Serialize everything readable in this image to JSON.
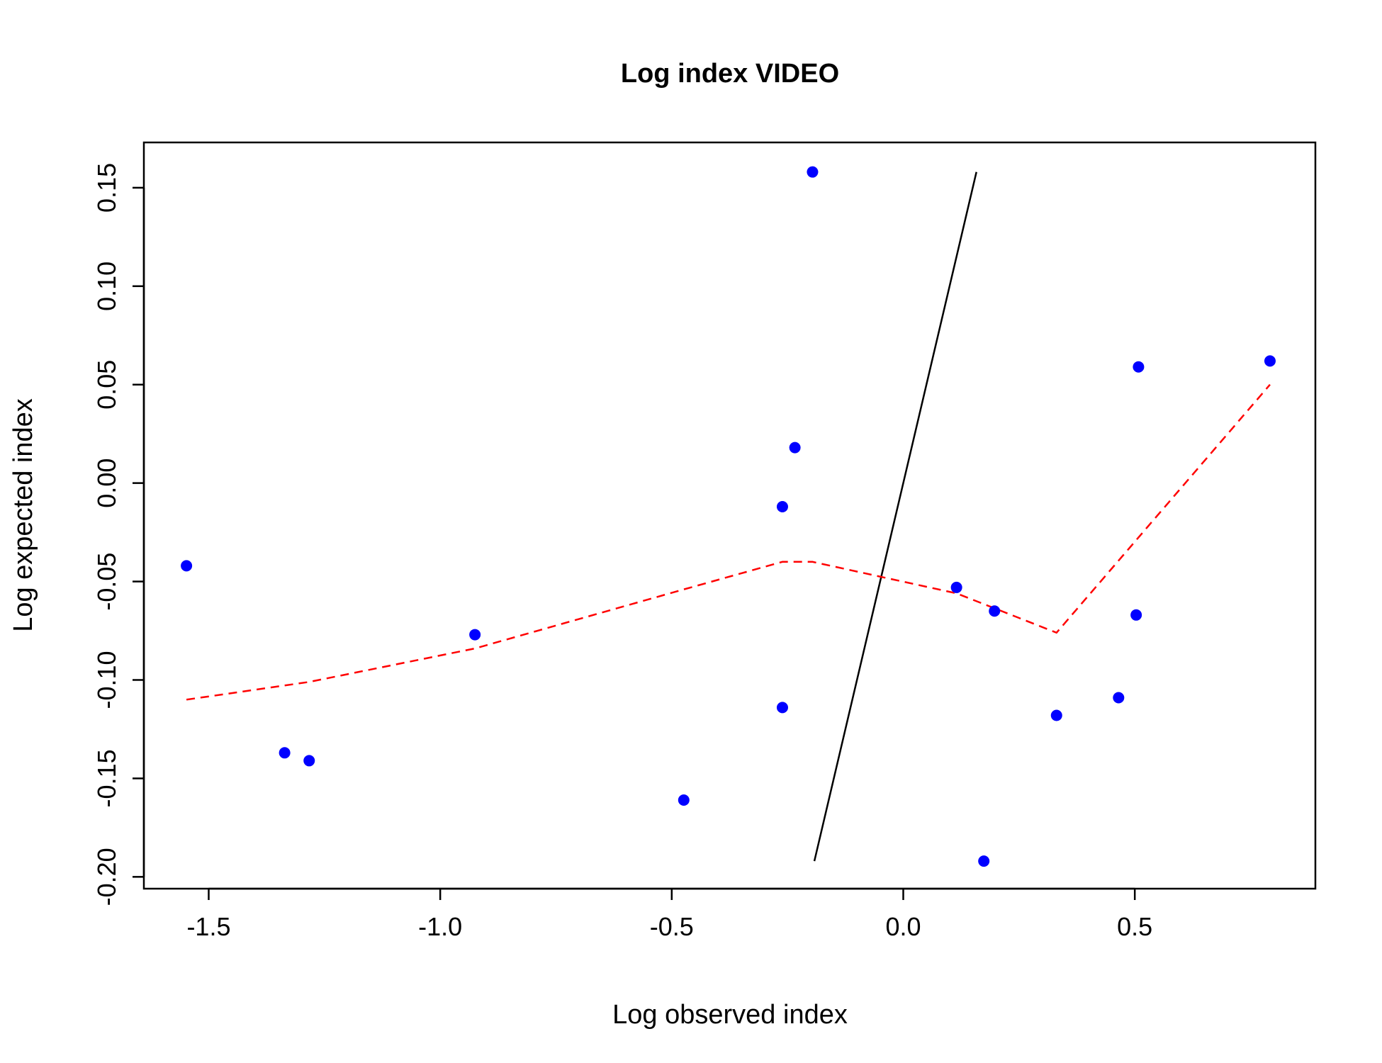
{
  "chart_data": {
    "type": "scatter",
    "title": "Log index VIDEO",
    "xlabel": "Log observed index",
    "ylabel": "Log expected index",
    "xlim": [
      -1.64,
      0.89
    ],
    "ylim": [
      -0.206,
      0.173
    ],
    "xticks": [
      {
        "value": -1.5,
        "label": "-1.5"
      },
      {
        "value": -1.0,
        "label": "-1.0"
      },
      {
        "value": -0.5,
        "label": "-0.5"
      },
      {
        "value": 0.0,
        "label": "0.0"
      },
      {
        "value": 0.5,
        "label": "0.5"
      }
    ],
    "yticks": [
      {
        "value": -0.2,
        "label": "-0.20"
      },
      {
        "value": -0.15,
        "label": "-0.15"
      },
      {
        "value": -0.1,
        "label": "-0.10"
      },
      {
        "value": -0.05,
        "label": "-0.05"
      },
      {
        "value": 0.0,
        "label": "0.00"
      },
      {
        "value": 0.05,
        "label": "0.05"
      },
      {
        "value": 0.1,
        "label": "0.10"
      },
      {
        "value": 0.15,
        "label": "0.15"
      }
    ],
    "points": {
      "color": "#0000ff",
      "x": [
        -1.548,
        -1.336,
        -1.283,
        -0.925,
        -0.474,
        -0.261,
        -0.261,
        -0.234,
        -0.196,
        0.115,
        0.174,
        0.197,
        0.331,
        0.465,
        0.503,
        0.508,
        0.792
      ],
      "y": [
        -0.042,
        -0.137,
        -0.141,
        -0.077,
        -0.161,
        -0.012,
        -0.114,
        0.018,
        0.158,
        -0.053,
        -0.192,
        -0.065,
        -0.118,
        -0.109,
        -0.067,
        0.059,
        0.062
      ]
    },
    "reference_line": {
      "color": "#000000",
      "x": [
        -0.192,
        0.158
      ],
      "y": [
        -0.192,
        0.158
      ]
    },
    "smooth_line": {
      "color": "#ff0000",
      "style": "dashed",
      "x": [
        -1.548,
        -1.283,
        -0.925,
        -0.474,
        -0.261,
        -0.196,
        0.115,
        0.331,
        0.792
      ],
      "y": [
        -0.11,
        -0.101,
        -0.084,
        -0.054,
        -0.04,
        -0.04,
        -0.056,
        -0.076,
        0.05
      ]
    },
    "grid": false,
    "legend": "none"
  }
}
